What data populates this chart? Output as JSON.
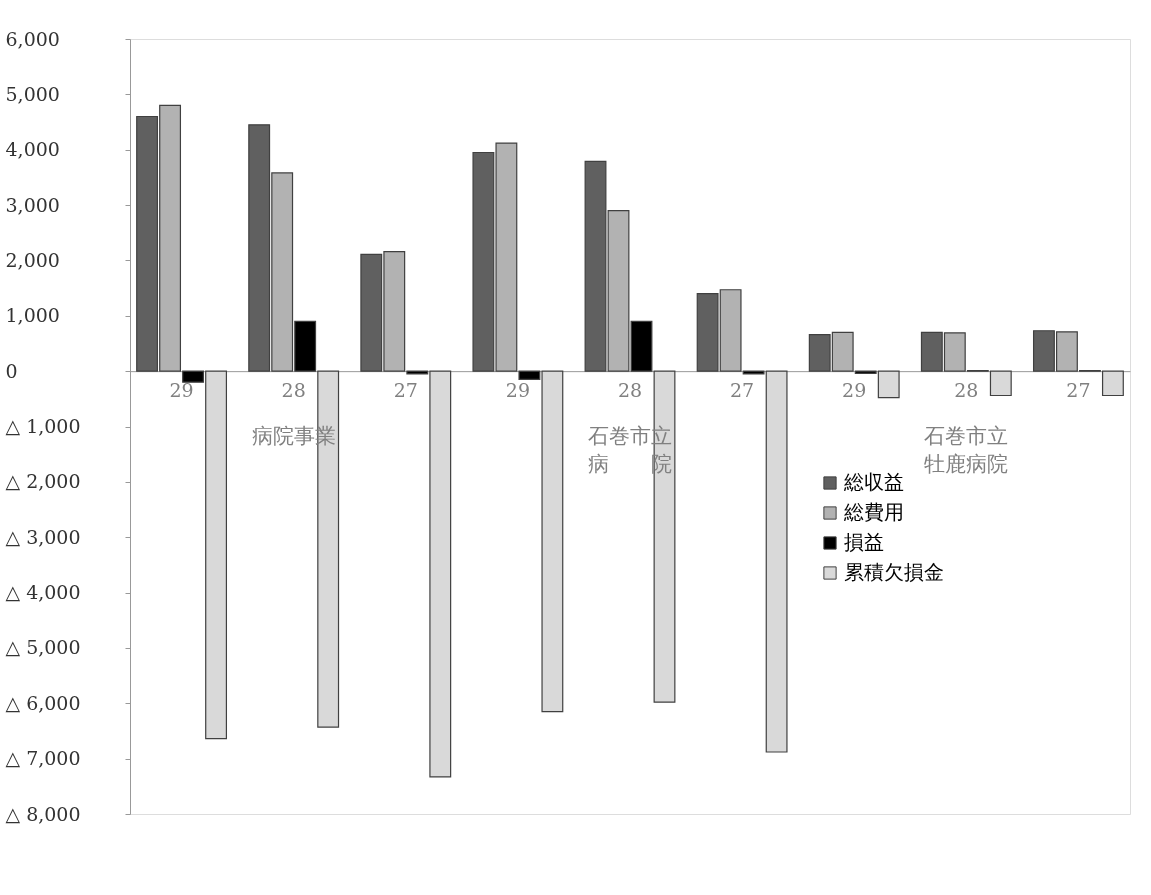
{
  "chart_data": {
    "type": "bar",
    "categories": [
      "29",
      "28",
      "27",
      "29",
      "28",
      "27",
      "29",
      "28",
      "27"
    ],
    "series": [
      {
        "name": "総収益",
        "color": "#606060",
        "values": [
          4600,
          4450,
          2110,
          3950,
          3790,
          1400,
          660,
          700,
          730
        ]
      },
      {
        "name": "総費用",
        "color": "#b2b2b2",
        "values": [
          4800,
          3580,
          2160,
          4120,
          2900,
          1470,
          700,
          690,
          710
        ]
      },
      {
        "name": "損益",
        "color": "#000000",
        "values": [
          -200,
          900,
          -50,
          -150,
          900,
          -50,
          -40,
          10,
          10
        ]
      },
      {
        "name": "累積欠損金",
        "color": "#d9d9d9",
        "values": [
          -6640,
          -6430,
          -7330,
          -6150,
          -5980,
          -6880,
          -480,
          -440,
          -440
        ]
      }
    ],
    "annotations": [
      "病院事業",
      "石巻市立病　　院",
      "石巻市立牡鹿病院"
    ],
    "ylim": [
      -8000,
      6000
    ],
    "yticks": [
      {
        "value": 6000,
        "label": "6,000"
      },
      {
        "value": 5000,
        "label": "5,000"
      },
      {
        "value": 4000,
        "label": "4,000"
      },
      {
        "value": 3000,
        "label": "3,000"
      },
      {
        "value": 2000,
        "label": "2,000"
      },
      {
        "value": 1000,
        "label": "1,000"
      },
      0,
      {
        "value": -1000,
        "label": "△ 1,000"
      },
      {
        "value": -2000,
        "label": "△ 2,000"
      },
      {
        "value": -3000,
        "label": "△ 3,000"
      },
      {
        "value": -4000,
        "label": "△ 4,000"
      },
      {
        "value": -5000,
        "label": "△ 5,000"
      },
      {
        "value": -6000,
        "label": "△ 6,000"
      },
      {
        "value": -7000,
        "label": "△ 7,000"
      },
      {
        "value": -8000,
        "label": "△ 8,000"
      }
    ],
    "grid": false,
    "legend": "right"
  }
}
